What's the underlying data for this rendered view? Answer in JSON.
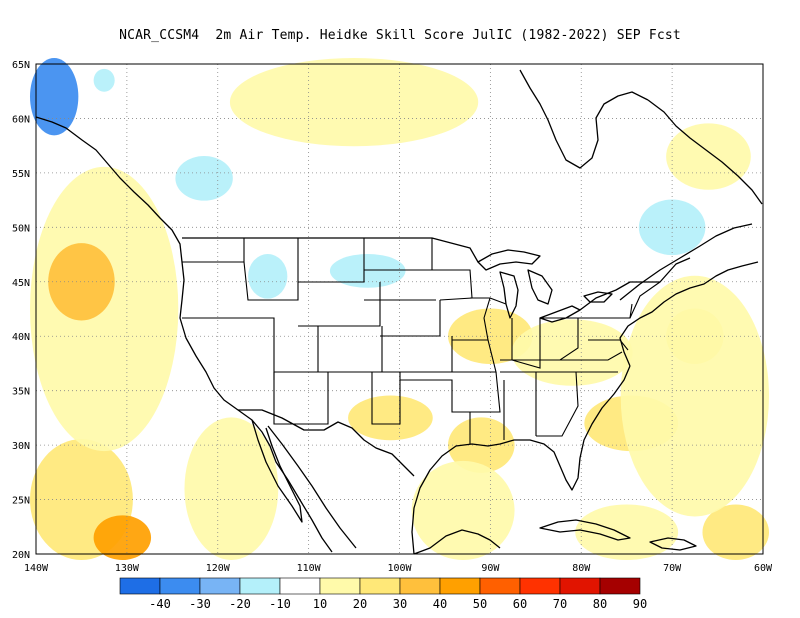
{
  "title": "NCAR_CCSM4  2m Air Temp. Heidke Skill Score JulIC (1982-2022) SEP Fcst",
  "map": {
    "projection": "lat-lon",
    "lon_range": [
      -140,
      -60
    ],
    "lat_range": [
      20,
      65
    ],
    "lon_ticks": [
      {
        "value": -140,
        "label": "140W"
      },
      {
        "value": -130,
        "label": "130W"
      },
      {
        "value": -120,
        "label": "120W"
      },
      {
        "value": -110,
        "label": "110W"
      },
      {
        "value": -100,
        "label": "100W"
      },
      {
        "value": -90,
        "label": "90W"
      },
      {
        "value": -80,
        "label": "80W"
      },
      {
        "value": -70,
        "label": "70W"
      },
      {
        "value": -60,
        "label": "60W"
      }
    ],
    "lat_ticks": [
      {
        "value": 20,
        "label": "20N"
      },
      {
        "value": 25,
        "label": "25N"
      },
      {
        "value": 30,
        "label": "30N"
      },
      {
        "value": 35,
        "label": "35N"
      },
      {
        "value": 40,
        "label": "40N"
      },
      {
        "value": 45,
        "label": "45N"
      },
      {
        "value": 50,
        "label": "50N"
      },
      {
        "value": 55,
        "label": "55N"
      },
      {
        "value": 60,
        "label": "60N"
      },
      {
        "value": 65,
        "label": "65N"
      }
    ],
    "grid": "dotted"
  },
  "colorbar": {
    "labels": [
      "-40",
      "-30",
      "-20",
      "-10",
      "10",
      "20",
      "30",
      "40",
      "50",
      "60",
      "70",
      "80",
      "90"
    ],
    "colors": [
      "#1e6ee6",
      "#3c8cf0",
      "#78b4f5",
      "#b4f0fa",
      "#ffffff",
      "#fffaaa",
      "#ffe878",
      "#ffc03c",
      "#ffa000",
      "#ff6000",
      "#ff3200",
      "#e11400",
      "#a50000"
    ]
  },
  "chart_data": {
    "type": "heatmap",
    "title": "NCAR_CCSM4  2m Air Temp. Heidke Skill Score JulIC (1982-2022) SEP Fcst",
    "x_range": [
      -140,
      -60
    ],
    "y_range": [
      20,
      65
    ],
    "levels": [
      -40,
      -30,
      -20,
      -10,
      10,
      20,
      30,
      40,
      50,
      60,
      70,
      80,
      90
    ],
    "regions": [
      {
        "lon": [
          -140,
          -136
        ],
        "lat": [
          59,
          65
        ],
        "score": -30
      },
      {
        "lon": [
          -124,
          -119
        ],
        "lat": [
          53,
          56
        ],
        "score": -10
      },
      {
        "lon": [
          -116,
          -113
        ],
        "lat": [
          44,
          47
        ],
        "score": -10
      },
      {
        "lon": [
          -107,
          -100
        ],
        "lat": [
          45,
          47
        ],
        "score": -10
      },
      {
        "lon": [
          -73,
          -67
        ],
        "lat": [
          48,
          52
        ],
        "score": -10
      },
      {
        "lon": [
          -133,
          -132
        ],
        "lat": [
          63,
          64
        ],
        "score": -10
      },
      {
        "lon": [
          -140,
          -130
        ],
        "lat": [
          20,
          30
        ],
        "score": 30
      },
      {
        "lon": [
          -140,
          -125
        ],
        "lat": [
          30,
          55
        ],
        "score": 20
      },
      {
        "lon": [
          -138,
          -132
        ],
        "lat": [
          42,
          48
        ],
        "score": 40
      },
      {
        "lon": [
          -133,
          -128
        ],
        "lat": [
          20,
          23
        ],
        "score": 50
      },
      {
        "lon": [
          -94,
          -86
        ],
        "lat": [
          38,
          42
        ],
        "score": 30
      },
      {
        "lon": [
          -94,
          -88
        ],
        "lat": [
          28,
          32
        ],
        "score": 30
      },
      {
        "lon": [
          -105,
          -97
        ],
        "lat": [
          31,
          34
        ],
        "score": 30
      },
      {
        "lon": [
          -70,
          -65
        ],
        "lat": [
          38,
          42
        ],
        "score": 30
      },
      {
        "lon": [
          -79,
          -70
        ],
        "lat": [
          30,
          34
        ],
        "score": 30
      },
      {
        "lon": [
          -66,
          -60
        ],
        "lat": [
          20,
          24
        ],
        "score": 30
      },
      {
        "lon": [
          -87,
          -75
        ],
        "lat": [
          36,
          41
        ],
        "score": 20
      },
      {
        "lon": [
          -123,
          -114
        ],
        "lat": [
          20,
          32
        ],
        "score": 20
      },
      {
        "lon": [
          -98,
          -88
        ],
        "lat": [
          20,
          28
        ],
        "score": 20
      },
      {
        "lon": [
          -75,
          -60
        ],
        "lat": [
          24,
          45
        ],
        "score": 20
      },
      {
        "lon": [
          -118,
          -92
        ],
        "lat": [
          58,
          65
        ],
        "score": 20
      },
      {
        "lon": [
          -70,
          -62
        ],
        "lat": [
          54,
          59
        ],
        "score": 20
      },
      {
        "lon": [
          -80,
          -70
        ],
        "lat": [
          20,
          24
        ],
        "score": 20
      }
    ]
  }
}
